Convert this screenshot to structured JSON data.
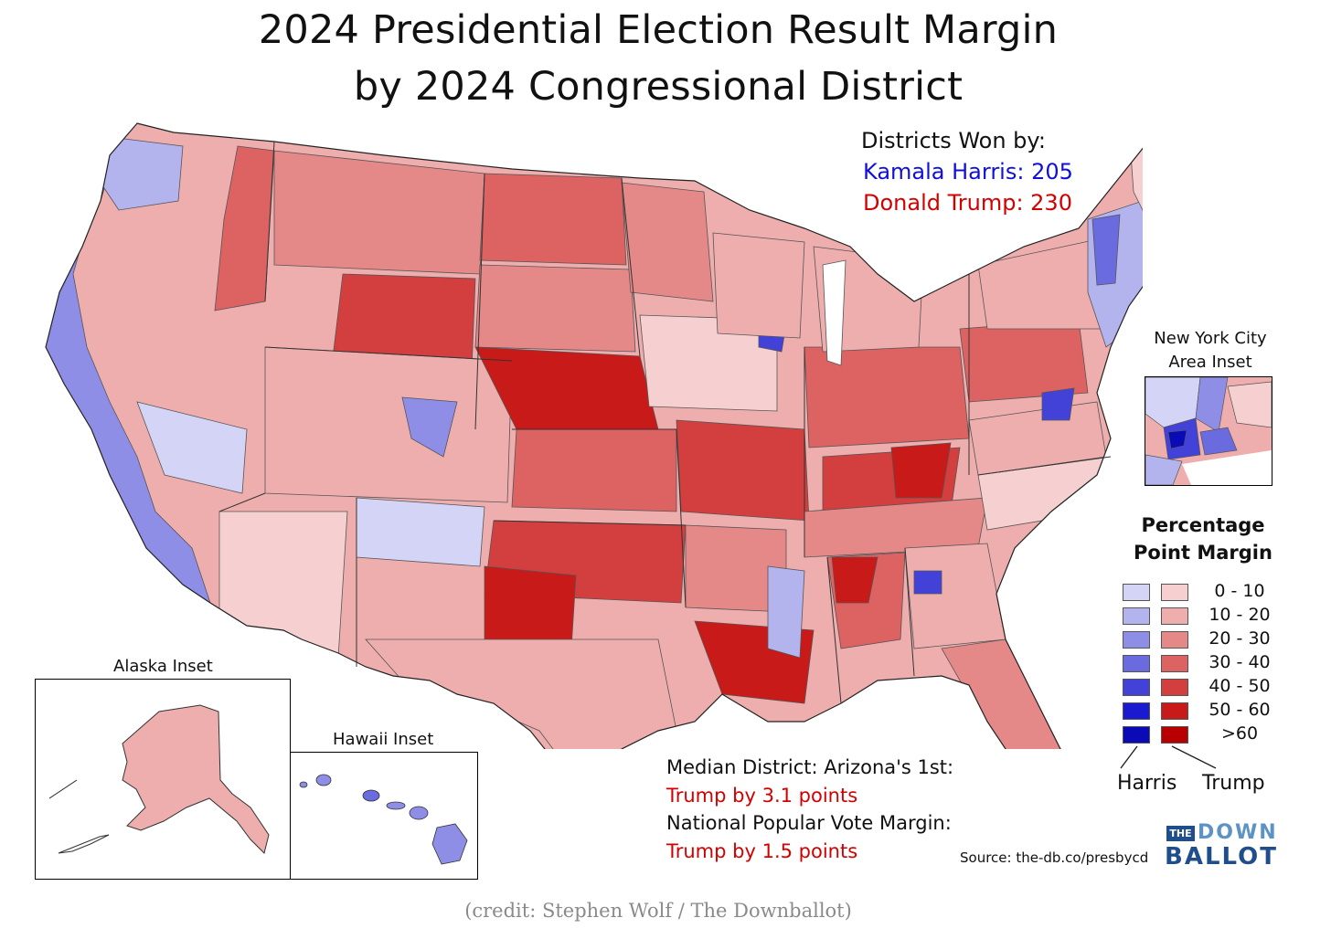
{
  "title": {
    "line1": "2024 Presidential Election Result Margin",
    "line2": "by 2024 Congressional District"
  },
  "districts_won": {
    "heading": "Districts Won by:",
    "harris": "Kamala Harris: 205",
    "trump": "Donald Trump: 230"
  },
  "insets": {
    "nyc_line1": "New York City",
    "nyc_line2": "Area Inset",
    "alaska": "Alaska Inset",
    "hawaii": "Hawaii Inset"
  },
  "legend": {
    "title_line1": "Percentage",
    "title_line2": "Point Margin",
    "rows": [
      {
        "range": "0 - 10",
        "harris_color": "#d4d4f6",
        "trump_color": "#f6d0d0"
      },
      {
        "range": "10 - 20",
        "harris_color": "#b3b3ee",
        "trump_color": "#efaeae"
      },
      {
        "range": "20 - 30",
        "harris_color": "#8e8ee6",
        "trump_color": "#e58888"
      },
      {
        "range": "30 - 40",
        "harris_color": "#6b6be0",
        "trump_color": "#dd6262"
      },
      {
        "range": "40 - 50",
        "harris_color": "#4242d8",
        "trump_color": "#d33e3e"
      },
      {
        "range": "50 - 60",
        "harris_color": "#1a1ad0",
        "trump_color": "#c91a1a"
      },
      {
        "range": ">60",
        "harris_color": "#0a0ab6",
        "trump_color": "#b80000"
      }
    ],
    "harris_label": "Harris",
    "trump_label": "Trump"
  },
  "notes": {
    "median_label": "Median District: Arizona's 1st:",
    "median_value": "Trump by 3.1 points",
    "popular_label": "National Popular Vote Margin:",
    "popular_value": "Trump by 1.5 points"
  },
  "source": "Source: the-db.co/presbycd",
  "logo": {
    "the": "THE",
    "down": "DOWN",
    "ballot": "BALLOT"
  },
  "credit": "(credit: Stephen Wolf / The Downballot)"
}
